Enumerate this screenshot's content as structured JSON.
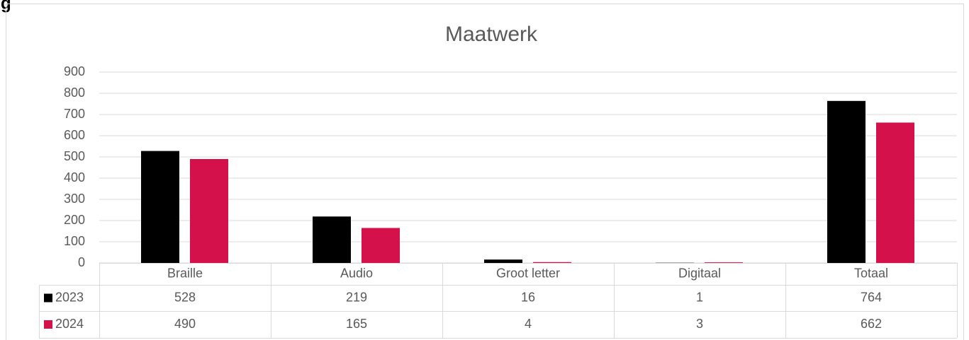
{
  "heading": "g",
  "chart_data": {
    "type": "bar",
    "title": "Maatwerk",
    "categories": [
      "Braille",
      "Audio",
      "Groot letter",
      "Digitaal",
      "Totaal"
    ],
    "series": [
      {
        "name": "2023",
        "color": "#000000",
        "values": [
          528,
          219,
          16,
          1,
          764
        ]
      },
      {
        "name": "2024",
        "color": "#d4114a",
        "values": [
          490,
          165,
          4,
          3,
          662
        ]
      }
    ],
    "ylim": [
      0,
      900
    ],
    "yticks": [
      0,
      100,
      200,
      300,
      400,
      500,
      600,
      700,
      800,
      900
    ],
    "grid": true,
    "data_table": true
  }
}
